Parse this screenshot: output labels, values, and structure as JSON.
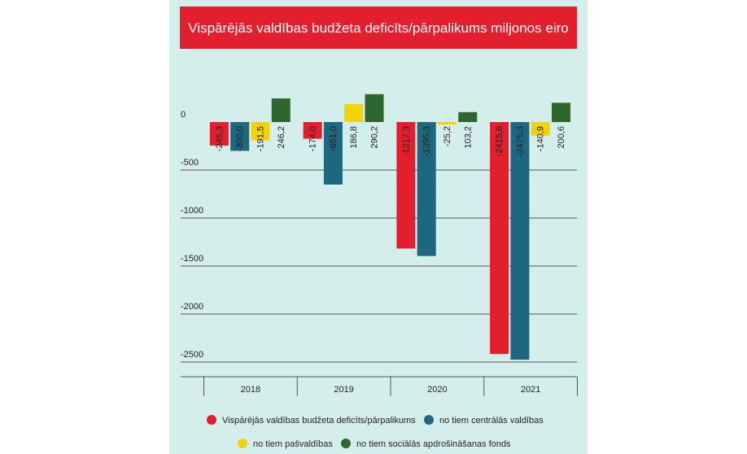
{
  "chart_data": {
    "type": "bar",
    "title": "Vispārējās valdības budžeta deficīts/pārpalikums miljonos eiro",
    "categories": [
      "2018",
      "2019",
      "2020",
      "2021"
    ],
    "series": [
      {
        "name": "Vispārējās valdības budžeta deficīts/pārpalikums",
        "color": "#e31f2d",
        "values": [
          -245.3,
          -174.0,
          -1317.3,
          -2415.6
        ],
        "value_labels": [
          "-245,3",
          "-174,0",
          "-1317,3",
          "-2415,6"
        ]
      },
      {
        "name": "no tiem centrālās valdības",
        "color": "#1d6880",
        "values": [
          -300.0,
          -651.0,
          -1395.3,
          -2475.3
        ],
        "value_labels": [
          "-300,0",
          "-651,0",
          "-1395,3",
          "-2475,3"
        ]
      },
      {
        "name": "no tiem pašvaldības",
        "color": "#f3d20c",
        "values": [
          -191.5,
          186.8,
          -25.2,
          -140.9
        ],
        "value_labels": [
          "-191,5",
          "186,8",
          "-25,2",
          "-140,9"
        ]
      },
      {
        "name": "no tiem sociālās apdrošināšanas fonds",
        "color": "#2f6630",
        "values": [
          246.2,
          290.2,
          103.2,
          200.6
        ],
        "value_labels": [
          "246,2",
          "290,2",
          "103,2",
          "200,6"
        ]
      }
    ],
    "ylim": [
      -2600,
      400
    ],
    "yticks": [
      0,
      -500,
      -1000,
      -1500,
      -2000,
      -2500
    ],
    "grid": true
  }
}
